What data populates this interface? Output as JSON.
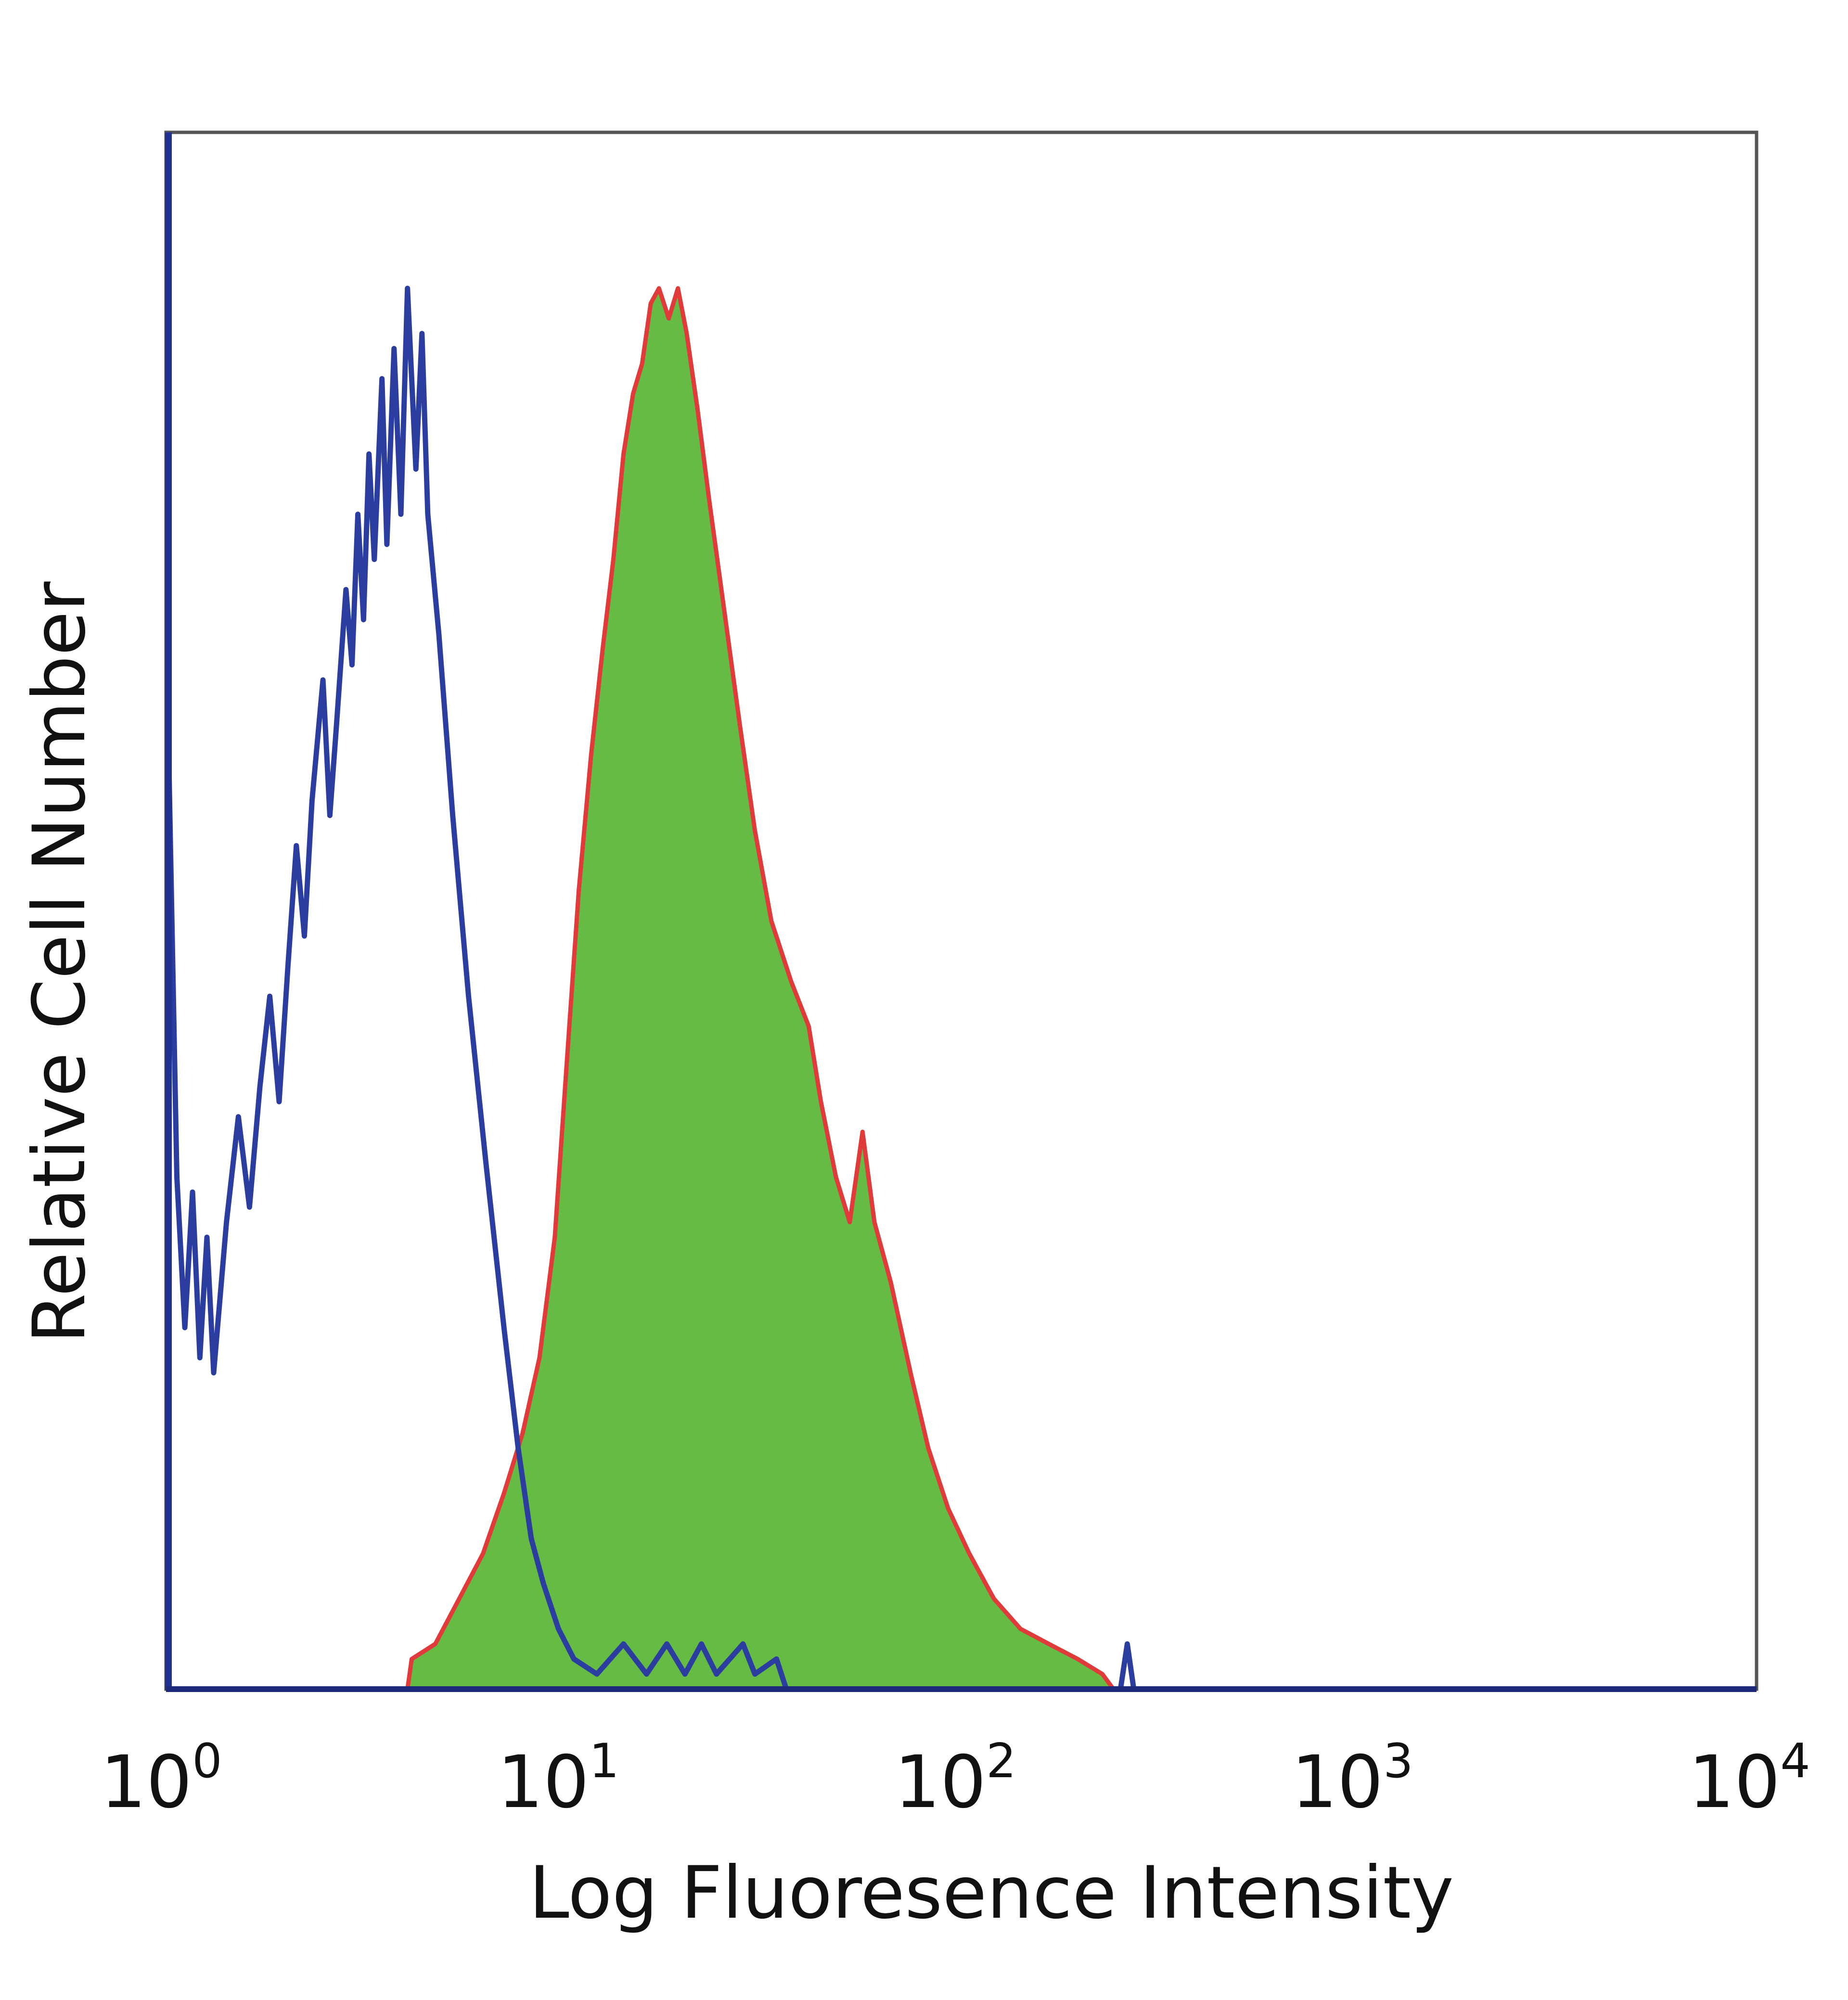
{
  "chart_data": {
    "type": "area",
    "title": "",
    "xlabel": "Log Fluoresence Intensity",
    "ylabel": "Relative Cell Number",
    "xscale": "log",
    "xlim": [
      1,
      10000
    ],
    "ylim": [
      0,
      100
    ],
    "grid": false,
    "legend": "none",
    "x_ticks": [
      {
        "base": "10",
        "exp": "0",
        "value": 1
      },
      {
        "base": "10",
        "exp": "1",
        "value": 10
      },
      {
        "base": "10",
        "exp": "2",
        "value": 100
      },
      {
        "base": "10",
        "exp": "3",
        "value": 1000
      },
      {
        "base": "10",
        "exp": "4",
        "value": 10000
      }
    ],
    "series": [
      {
        "style": "outline",
        "color": "#2b3d9e",
        "points": [
          [
            1.0,
            0
          ],
          [
            1.0,
            63
          ],
          [
            1.05,
            34
          ],
          [
            1.1,
            24
          ],
          [
            1.15,
            33
          ],
          [
            1.2,
            22
          ],
          [
            1.25,
            30
          ],
          [
            1.3,
            21
          ],
          [
            1.4,
            31
          ],
          [
            1.5,
            38
          ],
          [
            1.6,
            32
          ],
          [
            1.7,
            40
          ],
          [
            1.8,
            46
          ],
          [
            1.9,
            39
          ],
          [
            2.0,
            48
          ],
          [
            2.1,
            56
          ],
          [
            2.2,
            50
          ],
          [
            2.3,
            59
          ],
          [
            2.45,
            67
          ],
          [
            2.55,
            58
          ],
          [
            2.65,
            64
          ],
          [
            2.8,
            73
          ],
          [
            2.9,
            68
          ],
          [
            3.0,
            78
          ],
          [
            3.1,
            71
          ],
          [
            3.2,
            82
          ],
          [
            3.3,
            75
          ],
          [
            3.45,
            87
          ],
          [
            3.55,
            76
          ],
          [
            3.7,
            89
          ],
          [
            3.85,
            78
          ],
          [
            4.0,
            93
          ],
          [
            4.2,
            81
          ],
          [
            4.35,
            90
          ],
          [
            4.5,
            78
          ],
          [
            4.8,
            70
          ],
          [
            5.2,
            58
          ],
          [
            5.7,
            46
          ],
          [
            6.3,
            35
          ],
          [
            7.0,
            24
          ],
          [
            7.6,
            16
          ],
          [
            8.2,
            10
          ],
          [
            8.8,
            7
          ],
          [
            9.6,
            4
          ],
          [
            10.5,
            2
          ],
          [
            12.0,
            1
          ],
          [
            14.0,
            3
          ],
          [
            16.0,
            1
          ],
          [
            18.0,
            3
          ],
          [
            20.0,
            1
          ],
          [
            22.0,
            3
          ],
          [
            24.0,
            1
          ],
          [
            28.0,
            3
          ],
          [
            30.0,
            1
          ],
          [
            34.0,
            2
          ],
          [
            36.0,
            0
          ],
          [
            60.0,
            0
          ],
          [
            250.0,
            0
          ],
          [
            260.0,
            3
          ],
          [
            270.0,
            0
          ],
          [
            10000.0,
            0
          ]
        ]
      },
      {
        "style": "filled",
        "color": "#66bb44",
        "edge_color": "#e03a3a",
        "points": [
          [
            4.0,
            0
          ],
          [
            4.1,
            2
          ],
          [
            4.7,
            3
          ],
          [
            5.4,
            6
          ],
          [
            6.2,
            9
          ],
          [
            7.0,
            13
          ],
          [
            7.8,
            17
          ],
          [
            8.6,
            22
          ],
          [
            9.4,
            30
          ],
          [
            10.1,
            42
          ],
          [
            10.8,
            53
          ],
          [
            11.6,
            62
          ],
          [
            12.4,
            69
          ],
          [
            13.2,
            75
          ],
          [
            14.0,
            82
          ],
          [
            14.8,
            86
          ],
          [
            15.6,
            88
          ],
          [
            16.4,
            92
          ],
          [
            17.2,
            93
          ],
          [
            18.2,
            91
          ],
          [
            19.2,
            93
          ],
          [
            20.2,
            90
          ],
          [
            21.5,
            85
          ],
          [
            23.0,
            79
          ],
          [
            25.0,
            72
          ],
          [
            27.5,
            64
          ],
          [
            30.0,
            57
          ],
          [
            33.0,
            51
          ],
          [
            37.0,
            47
          ],
          [
            41.0,
            44
          ],
          [
            44.0,
            39
          ],
          [
            48.0,
            34
          ],
          [
            52.0,
            31
          ],
          [
            56.0,
            37
          ],
          [
            60.0,
            31
          ],
          [
            66.0,
            27
          ],
          [
            74.0,
            21
          ],
          [
            82.0,
            16
          ],
          [
            92.0,
            12
          ],
          [
            104.0,
            9
          ],
          [
            120.0,
            6
          ],
          [
            140.0,
            4
          ],
          [
            165.0,
            3
          ],
          [
            195.0,
            2
          ],
          [
            225.0,
            1
          ],
          [
            240.0,
            0
          ]
        ]
      }
    ]
  }
}
